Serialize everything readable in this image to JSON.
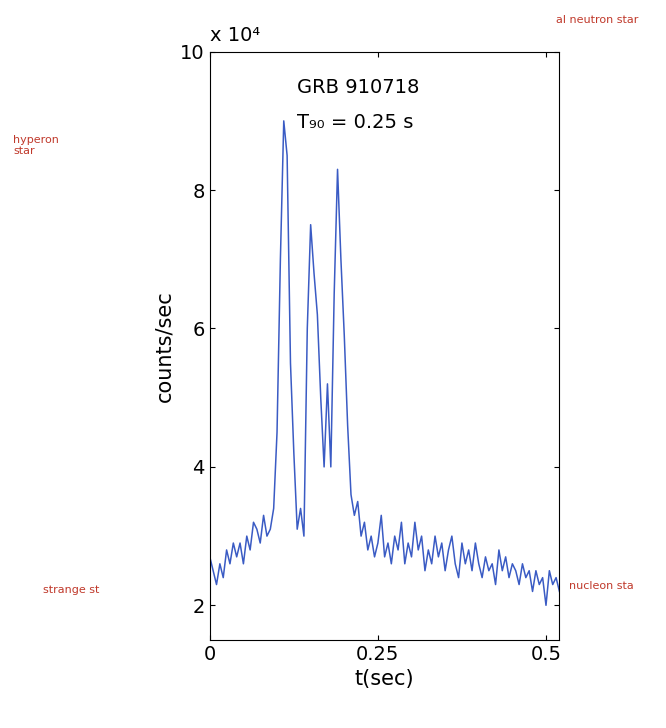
{
  "chart_data": {
    "type": "line",
    "title": "GRB 910718",
    "subtitle": "T₉₀ = 0.25 s",
    "x_label": "t(sec)",
    "y_label": "counts/sec",
    "annotations": [
      "x 10⁴",
      "hyperon\nstar",
      "strange st",
      "nucleon sta",
      "al neutron star"
    ],
    "color": "#3a5bc4",
    "x": [
      0,
      0.005,
      0.01,
      0.015,
      0.02,
      0.025,
      0.03,
      0.035,
      0.04,
      0.045,
      0.05,
      0.055,
      0.06,
      0.065,
      0.07,
      0.075,
      0.08,
      0.085,
      0.09,
      0.095,
      0.1,
      0.105,
      0.11,
      0.115,
      0.12,
      0.125,
      0.13,
      0.135,
      0.14,
      0.145,
      0.15,
      0.155,
      0.16,
      0.165,
      0.17,
      0.175,
      0.18,
      0.185,
      0.19,
      0.195,
      0.2,
      0.205,
      0.21,
      0.215,
      0.22,
      0.225,
      0.23,
      0.235,
      0.24,
      0.245,
      0.25,
      0.255,
      0.26,
      0.265,
      0.27,
      0.275,
      0.28,
      0.285,
      0.29,
      0.295,
      0.3,
      0.305,
      0.31,
      0.315,
      0.32,
      0.325,
      0.33,
      0.335,
      0.34,
      0.345,
      0.35,
      0.355,
      0.36,
      0.365,
      0.37,
      0.375,
      0.38,
      0.385,
      0.39,
      0.395,
      0.4,
      0.405,
      0.41,
      0.415,
      0.42,
      0.425,
      0.43,
      0.435,
      0.44,
      0.445,
      0.45,
      0.455,
      0.46,
      0.465,
      0.47,
      0.475,
      0.48,
      0.485,
      0.49,
      0.495,
      0.5,
      0.505,
      0.51,
      0.515,
      0.52
    ],
    "values": [
      2.7,
      2.5,
      2.3,
      2.6,
      2.4,
      2.8,
      2.6,
      2.9,
      2.7,
      2.9,
      2.6,
      3.0,
      2.8,
      3.2,
      3.1,
      2.9,
      3.3,
      3.0,
      3.1,
      3.4,
      4.5,
      7.0,
      9.0,
      8.5,
      5.5,
      4.2,
      3.1,
      3.4,
      3.0,
      6.0,
      7.5,
      6.8,
      6.2,
      5.0,
      4.0,
      5.2,
      4.0,
      6.5,
      8.3,
      7.0,
      5.9,
      4.6,
      3.6,
      3.3,
      3.5,
      3.0,
      3.2,
      2.8,
      3.0,
      2.7,
      2.9,
      3.3,
      2.7,
      2.9,
      2.6,
      3.0,
      2.8,
      3.2,
      2.6,
      2.9,
      2.7,
      3.2,
      2.8,
      3.0,
      2.5,
      2.8,
      2.6,
      3.0,
      2.7,
      2.9,
      2.5,
      2.8,
      3.0,
      2.6,
      2.4,
      2.9,
      2.6,
      2.8,
      2.5,
      2.9,
      2.6,
      2.4,
      2.7,
      2.5,
      2.6,
      2.3,
      2.8,
      2.5,
      2.7,
      2.4,
      2.6,
      2.5,
      2.3,
      2.6,
      2.4,
      2.5,
      2.2,
      2.5,
      2.3,
      2.4,
      2.0,
      2.5,
      2.3,
      2.4,
      2.2
    ],
    "xlim": [
      0,
      0.52
    ],
    "xticks": [
      0,
      0.25,
      0.5
    ],
    "ylim": [
      1.5,
      10
    ],
    "yticks": [
      2,
      4,
      6,
      8,
      10
    ],
    "grid": false
  }
}
